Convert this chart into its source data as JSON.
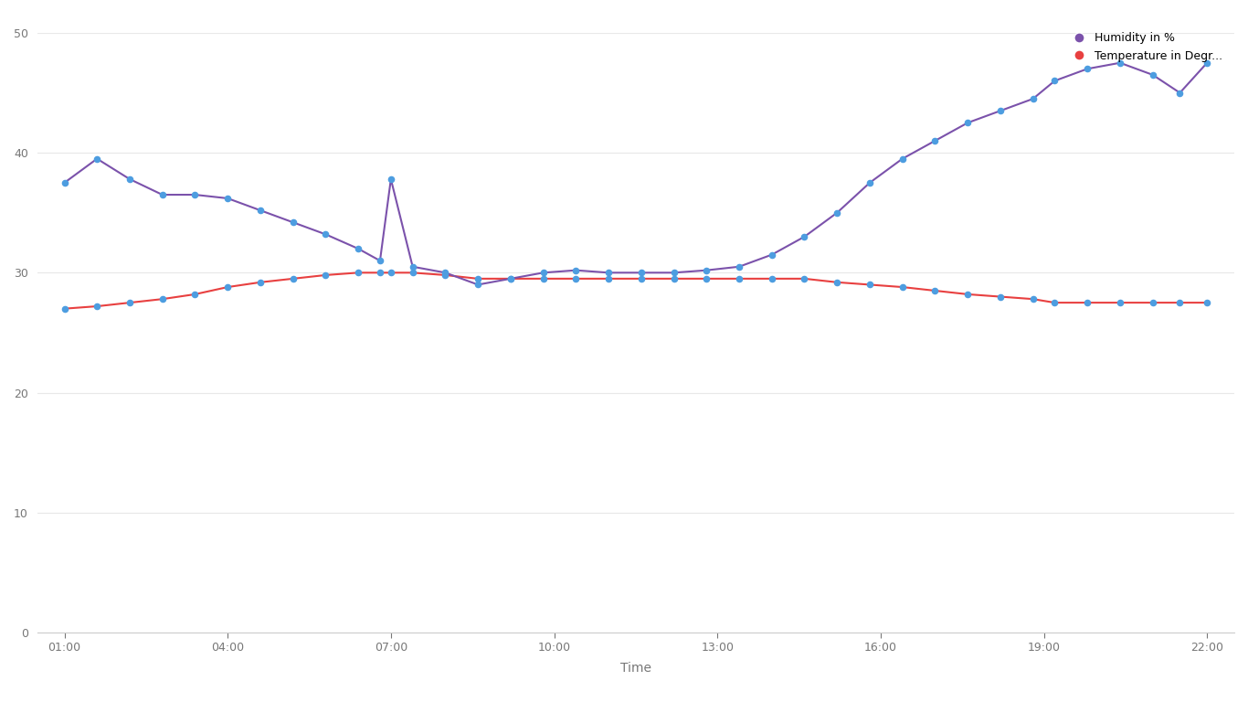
{
  "background_color": "#ffffff",
  "grid_color": "#e8e8e8",
  "humidity_line_color": "#7b52ab",
  "humidity_dot_color": "#4d9de0",
  "temp_line_color": "#e84040",
  "temp_dot_color": "#4d9de0",
  "legend_humidity_color": "#7b52ab",
  "legend_temp_color": "#e84040",
  "legend_humidity": "Humidity in %",
  "legend_temp": "Temperature in Degr...",
  "xlabel": "Time",
  "ylim": [
    0,
    50
  ],
  "yticks": [
    0,
    10,
    20,
    30,
    40,
    50
  ],
  "xtick_positions": [
    1,
    4,
    7,
    10,
    13,
    16,
    19,
    22
  ],
  "xtick_labels": [
    "01:00",
    "04:00",
    "07:00",
    "10:00",
    "13:00",
    "16:00",
    "19:00",
    "22:00"
  ],
  "humidity_x": [
    1.0,
    1.6,
    2.2,
    2.8,
    3.4,
    4.0,
    4.6,
    5.2,
    5.8,
    6.4,
    6.8,
    7.0,
    7.4,
    8.0,
    8.6,
    9.2,
    9.8,
    10.4,
    11.0,
    11.6,
    12.2,
    12.8,
    13.4,
    14.0,
    14.6,
    15.2,
    15.8,
    16.4,
    17.0,
    17.6,
    18.2,
    18.8,
    19.2,
    19.8,
    20.4,
    21.0,
    21.5,
    22.0
  ],
  "humidity_y": [
    37.5,
    39.5,
    37.8,
    36.5,
    36.5,
    36.2,
    35.2,
    34.2,
    33.2,
    32.0,
    31.0,
    37.8,
    30.5,
    30.0,
    29.0,
    29.5,
    30.0,
    30.2,
    30.0,
    30.0,
    30.0,
    30.2,
    30.5,
    31.5,
    33.0,
    35.0,
    37.5,
    39.5,
    41.0,
    42.5,
    43.5,
    44.5,
    46.0,
    47.0,
    47.5,
    46.5,
    45.0,
    47.5
  ],
  "temp_x": [
    1.0,
    1.6,
    2.2,
    2.8,
    3.4,
    4.0,
    4.6,
    5.2,
    5.8,
    6.4,
    6.8,
    7.0,
    7.4,
    8.0,
    8.6,
    9.2,
    9.8,
    10.4,
    11.0,
    11.6,
    12.2,
    12.8,
    13.4,
    14.0,
    14.6,
    15.2,
    15.8,
    16.4,
    17.0,
    17.6,
    18.2,
    18.8,
    19.2,
    19.8,
    20.4,
    21.0,
    21.5,
    22.0
  ],
  "temp_y": [
    27.0,
    27.2,
    27.5,
    27.8,
    28.2,
    28.8,
    29.2,
    29.5,
    29.8,
    30.0,
    30.0,
    30.0,
    30.0,
    29.8,
    29.5,
    29.5,
    29.5,
    29.5,
    29.5,
    29.5,
    29.5,
    29.5,
    29.5,
    29.5,
    29.5,
    29.2,
    29.0,
    28.8,
    28.5,
    28.2,
    28.0,
    27.8,
    27.5,
    27.5,
    27.5,
    27.5,
    27.5,
    27.5
  ]
}
